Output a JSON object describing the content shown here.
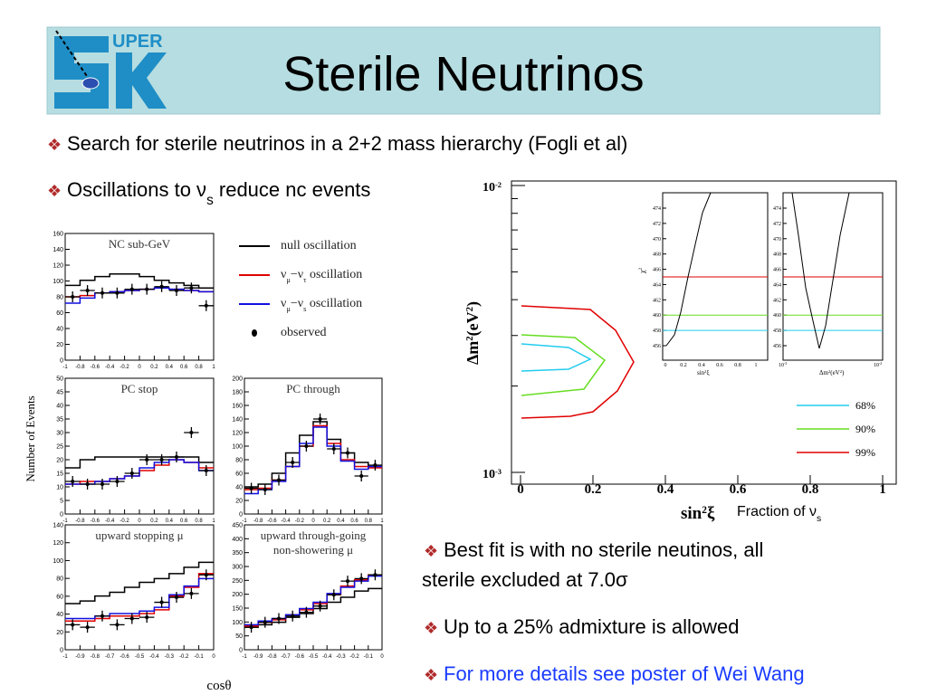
{
  "header": {
    "title": "Sterile Neutrinos",
    "logo_text": "UPER"
  },
  "bullets_top": [
    [
      "Search for sterile neutrinos in a 2+2 mass hierarchy (Fogli et al)"
    ],
    [
      "Oscillations to ν",
      "s",
      " reduce nc events"
    ]
  ],
  "figure_left": {
    "y_label": "Number of Events",
    "x_label": "cosθ",
    "legend": [
      [
        "null oscillation"
      ],
      [
        "ν",
        "μ",
        "−ν",
        "τ",
        " oscillation"
      ],
      [
        "ν",
        "μ",
        "−ν",
        "s",
        " oscillation"
      ],
      [
        "observed"
      ]
    ],
    "panels": [
      {
        "title": [
          "NC sub-GeV"
        ],
        "yticks": [
          0,
          20,
          40,
          60,
          80,
          100,
          120,
          140,
          160
        ],
        "xticks": [
          -1,
          -0.8,
          -0.6,
          -0.4,
          -0.2,
          0,
          0.2,
          0.4,
          0.6,
          0.8,
          1
        ]
      },
      {
        "title": [
          "PC stop"
        ],
        "yticks": [
          0,
          5,
          10,
          15,
          20,
          25,
          30,
          35,
          40,
          45,
          50
        ],
        "xticks": [
          -1,
          -0.8,
          -0.6,
          -0.4,
          -0.2,
          0,
          0.2,
          0.4,
          0.6,
          0.8,
          1
        ]
      },
      {
        "title": [
          "PC through"
        ],
        "yticks": [
          0,
          20,
          40,
          60,
          80,
          100,
          120,
          140,
          160,
          180,
          200
        ],
        "xticks": [
          -1,
          -0.8,
          -0.6,
          -0.4,
          -0.2,
          0,
          0.2,
          0.4,
          0.6,
          0.8,
          1
        ]
      },
      {
        "title": [
          "upward stopping μ"
        ],
        "yticks": [
          0,
          20,
          40,
          60,
          80,
          100,
          120,
          140
        ],
        "xticks": [
          -1,
          -0.9,
          -0.8,
          -0.7,
          -0.6,
          -0.5,
          -0.4,
          -0.3,
          -0.2,
          -0.1,
          0
        ]
      },
      {
        "title": [
          "upward through-going",
          "non-showering μ"
        ],
        "yticks": [
          0,
          50,
          100,
          150,
          200,
          250,
          300,
          350,
          400,
          450
        ],
        "xticks": [
          -1,
          -0.9,
          -0.8,
          -0.7,
          -0.6,
          -0.5,
          -0.4,
          -0.3,
          -0.2,
          -0.1,
          0
        ]
      }
    ]
  },
  "figure_right": {
    "y_label": [
      "Δm",
      "2",
      "(eV",
      "2",
      ")"
    ],
    "y_ticks": [
      [
        "10",
        "-2"
      ],
      [
        "10",
        "-3"
      ]
    ],
    "x_label": [
      "sin",
      "2",
      "ξ"
    ],
    "x_note": [
      "Fraction of ν",
      "s"
    ],
    "xticks": [
      0,
      0.2,
      0.4,
      0.6,
      0.8,
      1
    ],
    "legend": [
      "68%",
      "90%",
      "99%"
    ],
    "inset_left": {
      "y_label": [
        "χ",
        "2"
      ],
      "x_label": [
        "sin",
        "2",
        "ξ"
      ],
      "yticks": [
        456,
        458,
        460,
        462,
        464,
        466,
        468,
        470,
        472,
        474
      ],
      "xticks": [
        0,
        0.2,
        0.4,
        0.6,
        0.8,
        1
      ]
    },
    "inset_right": {
      "x_label": [
        "Δm",
        "2",
        "(eV",
        "2",
        ")"
      ],
      "yticks": [
        456,
        458,
        460,
        462,
        464,
        466,
        468,
        470,
        472,
        474
      ],
      "xticks": [
        [
          "10",
          "-3"
        ],
        [
          "10",
          "-2"
        ]
      ]
    }
  },
  "bullets_bottom": [
    [
      "Best fit is with no sterile neutinos, all",
      "sterile excluded at 7.0σ"
    ],
    [
      "Up to a 25% admixture is allowed"
    ],
    [
      "For more details see poster of Wei Wang"
    ]
  ]
}
